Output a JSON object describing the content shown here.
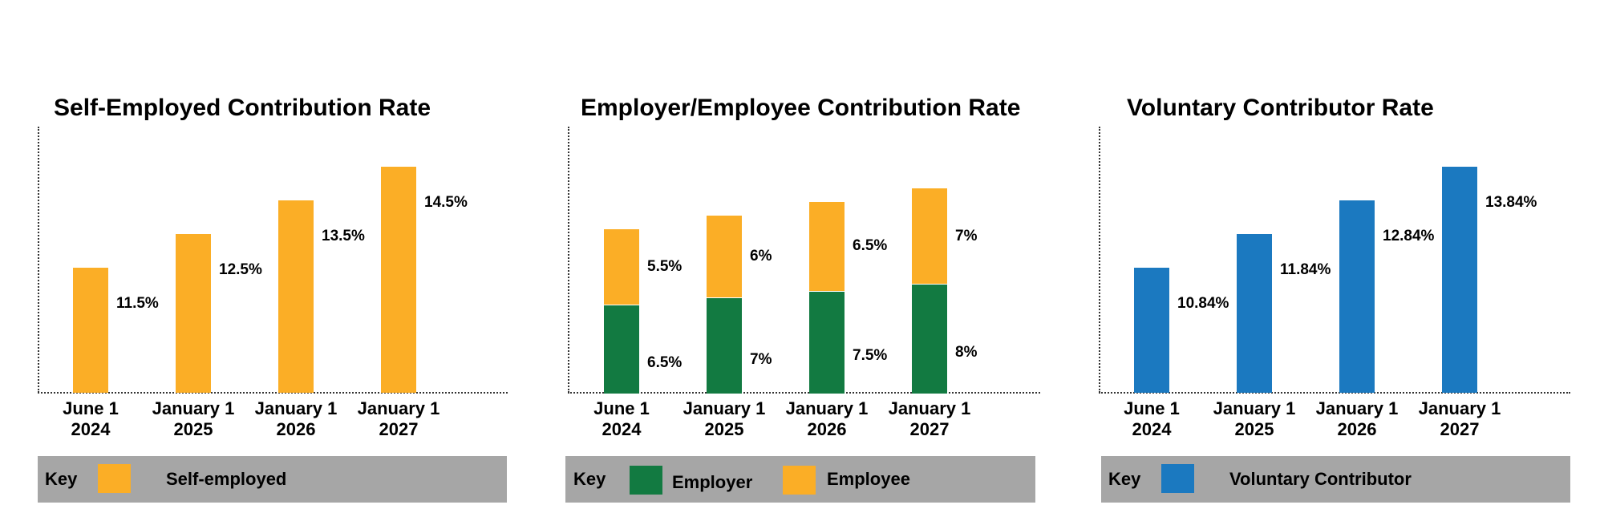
{
  "colors": {
    "self_employed": "#FBAE26",
    "employee": "#FBAE26",
    "employer": "#127A41",
    "voluntary": "#1B79C0",
    "key_bg": "#A6A6A6"
  },
  "chart_data": [
    {
      "type": "bar",
      "title": "Self-Employed Contribution Rate",
      "categories": [
        [
          "June 1",
          "2024"
        ],
        [
          "January 1",
          "2025"
        ],
        [
          "January 1",
          "2026"
        ],
        [
          "January 1",
          "2027"
        ]
      ],
      "series": [
        {
          "name": "Self-employed",
          "values": [
            11.5,
            12.5,
            13.5,
            14.5
          ],
          "labels": [
            "11.5%",
            "12.5%",
            "13.5%",
            "14.5%"
          ]
        }
      ],
      "xlabel": "",
      "ylabel": "",
      "grid": false,
      "legend": {
        "title": "Key",
        "placement": "bottom",
        "items": [
          "Self-employed"
        ]
      }
    },
    {
      "type": "bar",
      "stacked": true,
      "title": "Employer/Employee Contribution Rate",
      "categories": [
        [
          "June 1",
          "2024"
        ],
        [
          "January 1",
          "2025"
        ],
        [
          "January 1",
          "2026"
        ],
        [
          "January 1",
          "2027"
        ]
      ],
      "series": [
        {
          "name": "Employer",
          "values": [
            6.5,
            7,
            7.5,
            8
          ],
          "labels": [
            "6.5%",
            "7%",
            "7.5%",
            "8%"
          ]
        },
        {
          "name": "Employee",
          "values": [
            5.5,
            6,
            6.5,
            7
          ],
          "labels": [
            "5.5%",
            "6%",
            "6.5%",
            "7%"
          ]
        }
      ],
      "xlabel": "",
      "ylabel": "",
      "grid": false,
      "legend": {
        "title": "Key",
        "placement": "bottom",
        "items": [
          "Employer",
          "Employee"
        ]
      }
    },
    {
      "type": "bar",
      "title": "Voluntary Contributor Rate",
      "categories": [
        [
          "June 1",
          "2024"
        ],
        [
          "January 1",
          "2025"
        ],
        [
          "January 1",
          "2026"
        ],
        [
          "January 1",
          "2027"
        ]
      ],
      "series": [
        {
          "name": "Voluntary Contributor",
          "values": [
            10.84,
            11.84,
            12.84,
            13.84
          ],
          "labels": [
            "10.84%",
            "11.84%",
            "12.84%",
            "13.84%"
          ]
        }
      ],
      "xlabel": "",
      "ylabel": "",
      "grid": false,
      "legend": {
        "title": "Key",
        "placement": "bottom",
        "items": [
          "Voluntary Contributor"
        ]
      }
    }
  ]
}
